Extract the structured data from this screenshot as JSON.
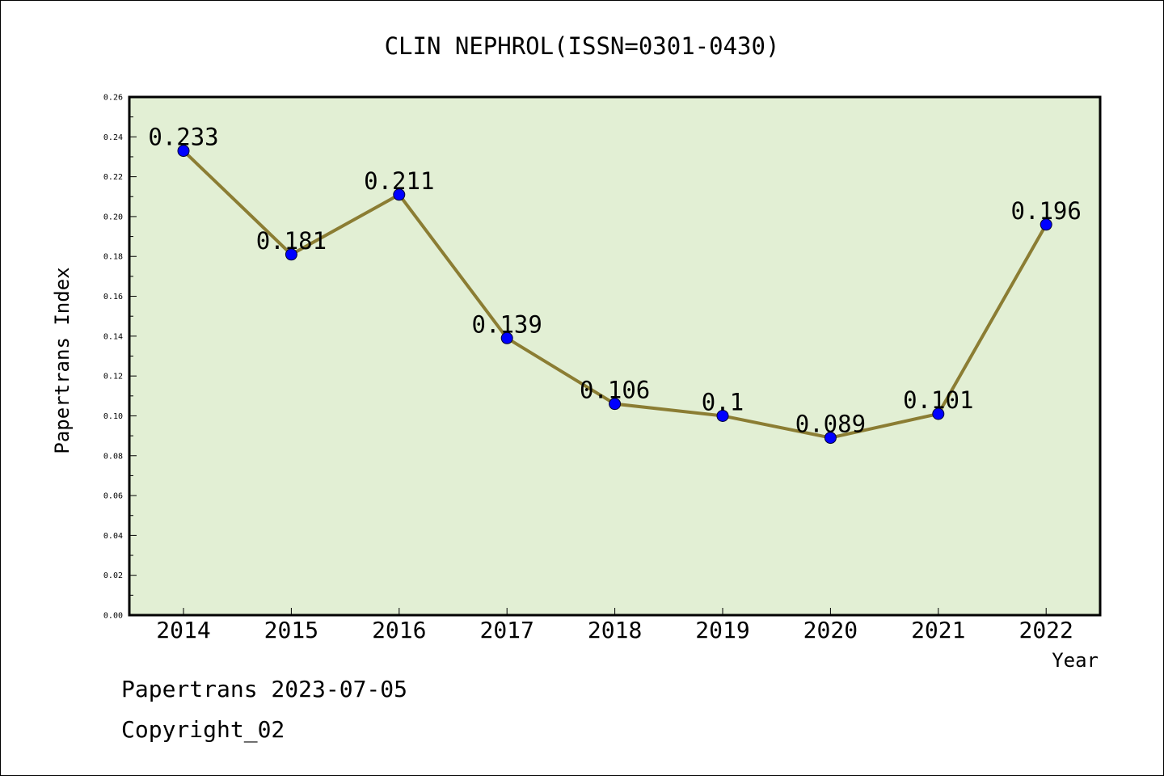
{
  "colors": {
    "plot_background": "#e2efd4",
    "line": "#8b7d33",
    "marker": "#0000ff",
    "text": "#000000"
  },
  "chart_data": {
    "type": "line",
    "title": "CLIN NEPHROL(ISSN=0301-0430)",
    "xlabel": "Year",
    "ylabel": "Papertrans Index",
    "categories": [
      "2014",
      "2015",
      "2016",
      "2017",
      "2018",
      "2019",
      "2020",
      "2021",
      "2022"
    ],
    "series": [
      {
        "values": [
          0.233,
          0.181,
          0.211,
          0.139,
          0.106,
          0.1,
          0.089,
          0.101,
          0.196
        ],
        "labels": [
          "0.233",
          "0.181",
          "0.211",
          "0.139",
          "0.106",
          "0.1",
          "0.089",
          "0.101",
          "0.196"
        ]
      }
    ],
    "ylim": [
      0,
      0.26
    ],
    "yticks": [
      "0.00",
      "0.02",
      "0.04",
      "0.06",
      "0.08",
      "0.10",
      "0.12",
      "0.14",
      "0.16",
      "0.18",
      "0.20",
      "0.22",
      "0.24",
      "0.26"
    ],
    "grid": false,
    "legend": "none"
  },
  "footer": {
    "date_line": "Papertrans 2023-07-05",
    "copyright": "Copyright_02"
  }
}
